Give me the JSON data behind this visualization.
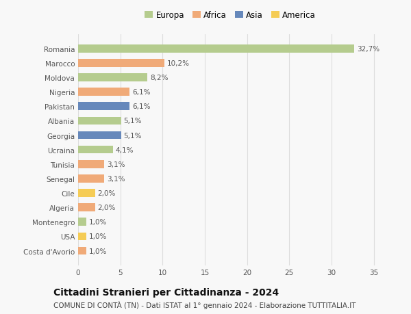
{
  "countries": [
    "Romania",
    "Marocco",
    "Moldova",
    "Nigeria",
    "Pakistan",
    "Albania",
    "Georgia",
    "Ucraina",
    "Tunisia",
    "Senegal",
    "Cile",
    "Algeria",
    "Montenegro",
    "USA",
    "Costa d'Avorio"
  ],
  "values": [
    32.7,
    10.2,
    8.2,
    6.1,
    6.1,
    5.1,
    5.1,
    4.1,
    3.1,
    3.1,
    2.0,
    2.0,
    1.0,
    1.0,
    1.0
  ],
  "labels": [
    "32,7%",
    "10,2%",
    "8,2%",
    "6,1%",
    "6,1%",
    "5,1%",
    "5,1%",
    "4,1%",
    "3,1%",
    "3,1%",
    "2,0%",
    "2,0%",
    "1,0%",
    "1,0%",
    "1,0%"
  ],
  "continents": [
    "Europa",
    "Africa",
    "Europa",
    "Africa",
    "Asia",
    "Europa",
    "Asia",
    "Europa",
    "Africa",
    "Africa",
    "America",
    "Africa",
    "Europa",
    "America",
    "Africa"
  ],
  "colors": {
    "Europa": "#b5cc8e",
    "Africa": "#f0aa78",
    "Asia": "#6688bb",
    "America": "#f5cc55"
  },
  "legend_order": [
    "Europa",
    "Africa",
    "Asia",
    "America"
  ],
  "title": "Cittadini Stranieri per Cittadinanza - 2024",
  "subtitle": "COMUNE DI CONTÀ (TN) - Dati ISTAT al 1° gennaio 2024 - Elaborazione TUTTITALIA.IT",
  "xlim": [
    0,
    36
  ],
  "xticks": [
    0,
    5,
    10,
    15,
    20,
    25,
    30,
    35
  ],
  "background_color": "#f8f8f8",
  "grid_color": "#dddddd",
  "bar_height": 0.55,
  "label_fontsize": 7.5,
  "tick_fontsize": 7.5,
  "title_fontsize": 10,
  "subtitle_fontsize": 7.5
}
